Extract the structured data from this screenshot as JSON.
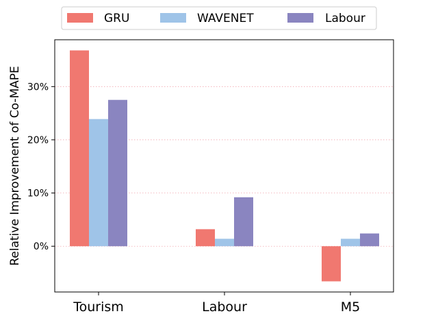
{
  "chart_data": {
    "type": "bar",
    "categories": [
      "Tourism",
      "Labour",
      "M5"
    ],
    "series": [
      {
        "name": "GRU",
        "values": [
          36.8,
          3.2,
          -6.6
        ],
        "color": "#f07870"
      },
      {
        "name": "WAVENET",
        "values": [
          23.9,
          1.4,
          1.4
        ],
        "color": "#9fc4e8"
      },
      {
        "name": "Labour",
        "values": [
          27.5,
          9.2,
          2.4
        ],
        "color": "#8a85c0"
      }
    ],
    "title": "",
    "xlabel": "",
    "ylabel": "Relative Improvement of Co-MAPE",
    "ylim": [
      -8.6,
      38.8
    ],
    "yticks": [
      0,
      10,
      20,
      30
    ],
    "ytick_labels": [
      "0%",
      "10%",
      "20%",
      "30%"
    ],
    "grid": "horizontal dotted",
    "grid_color": "#f2a7b0",
    "legend_position": "top-center"
  }
}
